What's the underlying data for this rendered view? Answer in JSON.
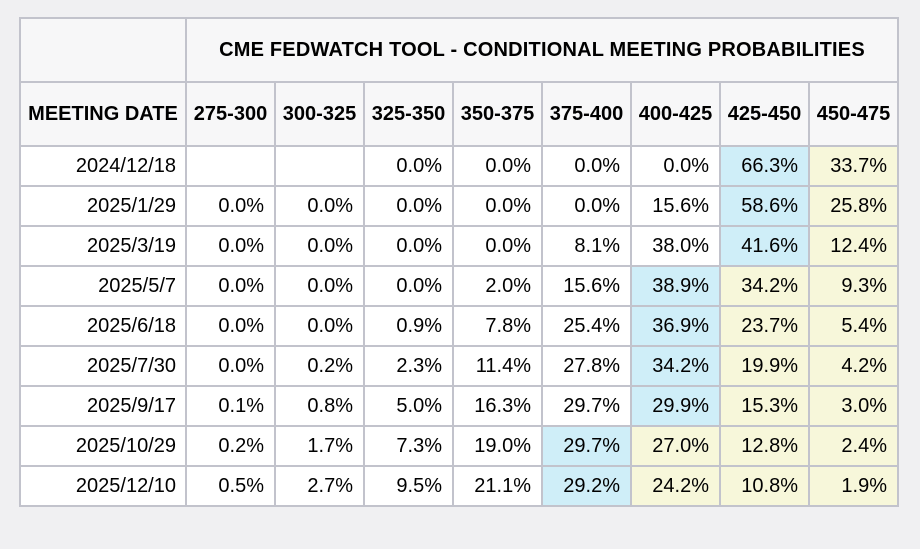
{
  "colors": {
    "page_bg": "#f0f0f2",
    "header_bg": "#f7f7f8",
    "cell_bg": "#ffffff",
    "border": "#c2c3cc",
    "highlight_blue": "#cfeef8",
    "highlight_yellow": "#f7f7da"
  },
  "chart_data": {
    "type": "table",
    "title": "CME FEDWATCH TOOL - CONDITIONAL MEETING PROBABILITIES",
    "row_label": "MEETING DATE",
    "units": "percent probability per target rate range (bps)",
    "columns": [
      "275-300",
      "300-325",
      "325-350",
      "350-375",
      "375-400",
      "400-425",
      "425-450",
      "450-475"
    ],
    "rows": [
      {
        "date": "2024/12/18",
        "cells": [
          "",
          "",
          "0.0%",
          "0.0%",
          "0.0%",
          "0.0%",
          "66.3%",
          "33.7%"
        ],
        "bg": [
          "",
          "",
          "",
          "",
          "",
          "",
          "blue",
          "yellow"
        ]
      },
      {
        "date": "2025/1/29",
        "cells": [
          "0.0%",
          "0.0%",
          "0.0%",
          "0.0%",
          "0.0%",
          "15.6%",
          "58.6%",
          "25.8%"
        ],
        "bg": [
          "",
          "",
          "",
          "",
          "",
          "",
          "blue",
          "yellow"
        ]
      },
      {
        "date": "2025/3/19",
        "cells": [
          "0.0%",
          "0.0%",
          "0.0%",
          "0.0%",
          "8.1%",
          "38.0%",
          "41.6%",
          "12.4%"
        ],
        "bg": [
          "",
          "",
          "",
          "",
          "",
          "",
          "blue",
          "yellow"
        ]
      },
      {
        "date": "2025/5/7",
        "cells": [
          "0.0%",
          "0.0%",
          "0.0%",
          "2.0%",
          "15.6%",
          "38.9%",
          "34.2%",
          "9.3%"
        ],
        "bg": [
          "",
          "",
          "",
          "",
          "",
          "blue",
          "yellow",
          "yellow"
        ]
      },
      {
        "date": "2025/6/18",
        "cells": [
          "0.0%",
          "0.0%",
          "0.9%",
          "7.8%",
          "25.4%",
          "36.9%",
          "23.7%",
          "5.4%"
        ],
        "bg": [
          "",
          "",
          "",
          "",
          "",
          "blue",
          "yellow",
          "yellow"
        ]
      },
      {
        "date": "2025/7/30",
        "cells": [
          "0.0%",
          "0.2%",
          "2.3%",
          "11.4%",
          "27.8%",
          "34.2%",
          "19.9%",
          "4.2%"
        ],
        "bg": [
          "",
          "",
          "",
          "",
          "",
          "blue",
          "yellow",
          "yellow"
        ]
      },
      {
        "date": "2025/9/17",
        "cells": [
          "0.1%",
          "0.8%",
          "5.0%",
          "16.3%",
          "29.7%",
          "29.9%",
          "15.3%",
          "3.0%"
        ],
        "bg": [
          "",
          "",
          "",
          "",
          "",
          "blue",
          "yellow",
          "yellow"
        ]
      },
      {
        "date": "2025/10/29",
        "cells": [
          "0.2%",
          "1.7%",
          "7.3%",
          "19.0%",
          "29.7%",
          "27.0%",
          "12.8%",
          "2.4%"
        ],
        "bg": [
          "",
          "",
          "",
          "",
          "blue",
          "yellow",
          "yellow",
          "yellow"
        ]
      },
      {
        "date": "2025/12/10",
        "cells": [
          "0.5%",
          "2.7%",
          "9.5%",
          "21.1%",
          "29.2%",
          "24.2%",
          "10.8%",
          "1.9%"
        ],
        "bg": [
          "",
          "",
          "",
          "",
          "blue",
          "yellow",
          "yellow",
          "yellow"
        ]
      }
    ]
  }
}
